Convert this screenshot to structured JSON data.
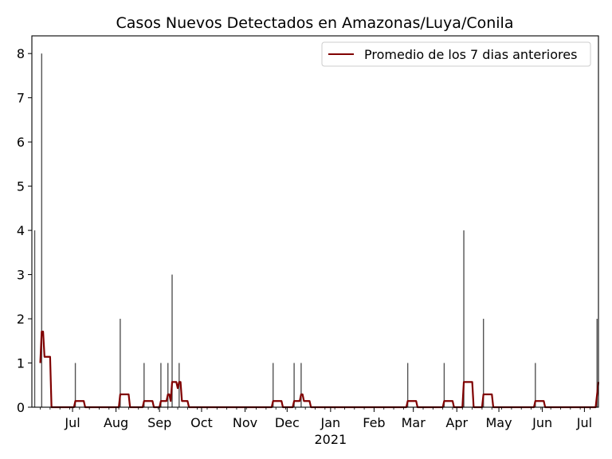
{
  "chart_data": {
    "type": "bar",
    "title": "Casos Nuevos Detectados en Amazonas/Luya/Conila",
    "xlabel": "",
    "ylabel": "",
    "ylim": [
      0,
      8.4
    ],
    "xlim": [
      "2020-06-02",
      "2021-07-11"
    ],
    "yticks": [
      0,
      1,
      2,
      3,
      4,
      5,
      6,
      7,
      8
    ],
    "xticks": [
      {
        "date": "2020-07-01",
        "label": "Jul"
      },
      {
        "date": "2020-08-01",
        "label": "Aug"
      },
      {
        "date": "2020-09-01",
        "label": "Sep"
      },
      {
        "date": "2020-10-01",
        "label": "Oct"
      },
      {
        "date": "2020-11-01",
        "label": "Nov"
      },
      {
        "date": "2020-12-01",
        "label": "Dec"
      },
      {
        "date": "2021-01-01",
        "label": "Jan",
        "sublabel": "2021"
      },
      {
        "date": "2021-02-01",
        "label": "Feb"
      },
      {
        "date": "2021-03-01",
        "label": "Mar"
      },
      {
        "date": "2021-04-01",
        "label": "Apr"
      },
      {
        "date": "2021-05-01",
        "label": "May"
      },
      {
        "date": "2021-06-01",
        "label": "Jun"
      },
      {
        "date": "2021-07-01",
        "label": "Jul"
      }
    ],
    "grid": false,
    "legend_position": "top-right",
    "bar_color": "#555555",
    "line_color": "#800000",
    "bars": [
      {
        "date": "2020-06-04",
        "value": 4
      },
      {
        "date": "2020-06-09",
        "value": 8
      },
      {
        "date": "2020-07-03",
        "value": 1
      },
      {
        "date": "2020-08-04",
        "value": 2
      },
      {
        "date": "2020-08-21",
        "value": 1
      },
      {
        "date": "2020-09-02",
        "value": 1
      },
      {
        "date": "2020-09-07",
        "value": 1
      },
      {
        "date": "2020-09-10",
        "value": 3
      },
      {
        "date": "2020-09-15",
        "value": 1
      },
      {
        "date": "2020-11-21",
        "value": 1
      },
      {
        "date": "2020-12-06",
        "value": 1
      },
      {
        "date": "2020-12-11",
        "value": 1
      },
      {
        "date": "2021-02-25",
        "value": 1
      },
      {
        "date": "2021-03-23",
        "value": 1
      },
      {
        "date": "2021-04-06",
        "value": 4
      },
      {
        "date": "2021-04-20",
        "value": 2
      },
      {
        "date": "2021-05-27",
        "value": 1
      },
      {
        "date": "2021-07-10",
        "value": 2
      }
    ],
    "series": [
      {
        "name": "Promedio de los 7 dias anteriores",
        "points": [
          [
            "2020-06-08",
            1.0
          ],
          [
            "2020-06-09",
            1.71
          ],
          [
            "2020-06-10",
            1.71
          ],
          [
            "2020-06-11",
            1.14
          ],
          [
            "2020-06-15",
            1.14
          ],
          [
            "2020-06-16",
            0
          ],
          [
            "2020-07-02",
            0
          ],
          [
            "2020-07-03",
            0.14
          ],
          [
            "2020-07-09",
            0.14
          ],
          [
            "2020-07-10",
            0
          ],
          [
            "2020-08-03",
            0
          ],
          [
            "2020-08-04",
            0.29
          ],
          [
            "2020-08-10",
            0.29
          ],
          [
            "2020-08-11",
            0
          ],
          [
            "2020-08-20",
            0
          ],
          [
            "2020-08-21",
            0.14
          ],
          [
            "2020-08-27",
            0.14
          ],
          [
            "2020-08-28",
            0
          ],
          [
            "2020-09-01",
            0
          ],
          [
            "2020-09-02",
            0.14
          ],
          [
            "2020-09-06",
            0.14
          ],
          [
            "2020-09-07",
            0.29
          ],
          [
            "2020-09-08",
            0.29
          ],
          [
            "2020-09-09",
            0.14
          ],
          [
            "2020-09-10",
            0.57
          ],
          [
            "2020-09-13",
            0.57
          ],
          [
            "2020-09-14",
            0.43
          ],
          [
            "2020-09-15",
            0.57
          ],
          [
            "2020-09-16",
            0.57
          ],
          [
            "2020-09-17",
            0.14
          ],
          [
            "2020-09-21",
            0.14
          ],
          [
            "2020-09-22",
            0
          ],
          [
            "2020-11-20",
            0
          ],
          [
            "2020-11-21",
            0.14
          ],
          [
            "2020-11-27",
            0.14
          ],
          [
            "2020-11-28",
            0
          ],
          [
            "2020-12-05",
            0
          ],
          [
            "2020-12-06",
            0.14
          ],
          [
            "2020-12-10",
            0.14
          ],
          [
            "2020-12-11",
            0.29
          ],
          [
            "2020-12-12",
            0.29
          ],
          [
            "2020-12-13",
            0.14
          ],
          [
            "2020-12-17",
            0.14
          ],
          [
            "2020-12-18",
            0
          ],
          [
            "2021-02-24",
            0
          ],
          [
            "2021-02-25",
            0.14
          ],
          [
            "2021-03-03",
            0.14
          ],
          [
            "2021-03-04",
            0
          ],
          [
            "2021-03-22",
            0
          ],
          [
            "2021-03-23",
            0.14
          ],
          [
            "2021-03-29",
            0.14
          ],
          [
            "2021-03-30",
            0
          ],
          [
            "2021-04-05",
            0
          ],
          [
            "2021-04-06",
            0.57
          ],
          [
            "2021-04-12",
            0.57
          ],
          [
            "2021-04-13",
            0
          ],
          [
            "2021-04-19",
            0
          ],
          [
            "2021-04-20",
            0.29
          ],
          [
            "2021-04-26",
            0.29
          ],
          [
            "2021-04-27",
            0
          ],
          [
            "2021-05-26",
            0
          ],
          [
            "2021-05-27",
            0.14
          ],
          [
            "2021-06-02",
            0.14
          ],
          [
            "2021-06-03",
            0
          ],
          [
            "2021-07-09",
            0
          ],
          [
            "2021-07-11",
            0.57
          ]
        ]
      }
    ]
  }
}
